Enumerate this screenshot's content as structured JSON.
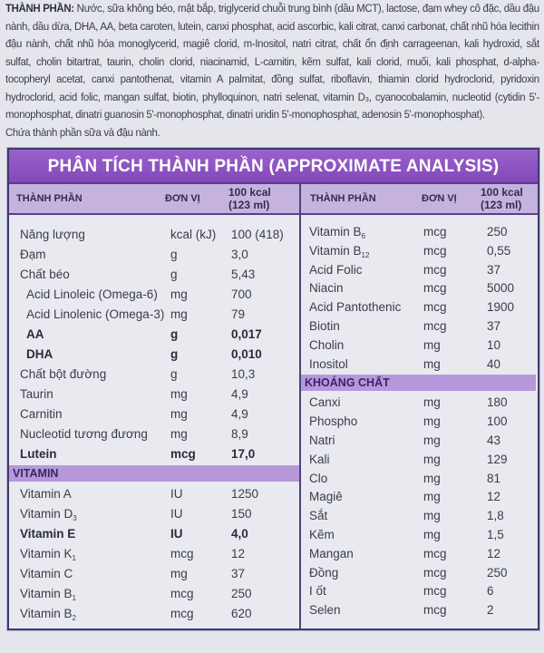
{
  "ingredients": {
    "label": "THÀNH PHẦN:",
    "text": "Nước, sữa không béo, mật bắp, triglycerid chuỗi trung bình (dầu MCT), lactose, đạm whey cô đặc, dầu đậu nành, dầu dừa, DHA, AA, beta caroten, lutein, canxi phosphat, acid ascorbic, kali citrat, canxi carbonat, chất nhũ hóa lecithin đậu nành, chất nhũ hóa monoglycerid, magiê clorid, m-Inositol, natri citrat, chất ổn định carrageenan, kali hydroxid, sắt sulfat, cholin bitartrat, taurin, cholin clorid, niacinamid, L-carnitin, kẽm sulfat, kali clorid, muối, kali phosphat, d-alpha-tocopheryl acetat, canxi pantothenat, vitamin A palmitat, đồng sulfat, riboflavin, thiamin clorid hydroclorid, pyridoxin hydroclorid, acid folic, mangan sulfat, biotin, phylloquinon, natri selenat, vitamin D₃, cyanocobalamin, nucleotid (cytidin 5'-monophosphat, dinatri guanosin 5'-monophosphat, dinatri uridin 5'-monophosphat, adenosin 5'-monophosphat).",
    "allergen": "Chứa thành phần sữa và đậu nành."
  },
  "table": {
    "title": "PHÂN TÍCH THÀNH PHẦN (APPROXIMATE ANALYSIS)",
    "headers": {
      "name": "THÀNH PHẦN",
      "unit": "ĐƠN VỊ",
      "value1": "100 kcal",
      "value2": "(123 ml)"
    },
    "left": [
      {
        "name": "Năng lượng",
        "unit": "kcal (kJ)",
        "value": "100 (418)"
      },
      {
        "name": "Đạm",
        "unit": "g",
        "value": "3,0"
      },
      {
        "name": "Chất béo",
        "unit": "g",
        "value": "5,43"
      },
      {
        "name": "Acid Linoleic (Omega-6)",
        "unit": "mg",
        "value": "700",
        "indent": true
      },
      {
        "name": "Acid Linolenic (Omega-3)",
        "unit": "mg",
        "value": "79",
        "indent": true
      },
      {
        "name": "AA",
        "unit": "g",
        "value": "0,017",
        "indent": true,
        "bold": true
      },
      {
        "name": "DHA",
        "unit": "g",
        "value": "0,010",
        "indent": true,
        "bold": true
      },
      {
        "name": "Chất bột đường",
        "unit": "g",
        "value": "10,3"
      },
      {
        "name": "Taurin",
        "unit": "mg",
        "value": "4,9"
      },
      {
        "name": "Carnitin",
        "unit": "mg",
        "value": "4,9"
      },
      {
        "name": "Nucleotid tương đương",
        "unit": "mg",
        "value": "8,9"
      },
      {
        "name": "Lutein",
        "unit": "mcg",
        "value": "17,0",
        "bold": true
      }
    ],
    "vitamin_label": "VITAMIN",
    "vitamins_left": [
      {
        "name": "Vitamin A",
        "unit": "IU",
        "value": "1250"
      },
      {
        "name": "Vitamin D",
        "sub": "3",
        "unit": "IU",
        "value": "150"
      },
      {
        "name": "Vitamin E",
        "unit": "IU",
        "value": "4,0",
        "bold": true
      },
      {
        "name": "Vitamin K",
        "sub": "1",
        "unit": "mcg",
        "value": "12"
      },
      {
        "name": "Vitamin  C",
        "unit": "mg",
        "value": "37"
      },
      {
        "name": "Vitamin B",
        "sub": "1",
        "unit": "mcg",
        "value": "250"
      },
      {
        "name": "Vitamin B",
        "sub": "2",
        "unit": "mcg",
        "value": "620"
      }
    ],
    "vitamins_right": [
      {
        "name": "Vitamin B",
        "sub": "6",
        "unit": "mcg",
        "value": "250"
      },
      {
        "name": "Vitamin B",
        "sub": "12",
        "unit": "mcg",
        "value": "0,55"
      },
      {
        "name": "Acid Folic",
        "unit": "mcg",
        "value": "37"
      },
      {
        "name": "Niacin",
        "unit": "mcg",
        "value": "5000"
      },
      {
        "name": "Acid Pantothenic",
        "unit": "mcg",
        "value": "1900"
      },
      {
        "name": "Biotin",
        "unit": "mcg",
        "value": "37"
      },
      {
        "name": "Cholin",
        "unit": "mg",
        "value": "10"
      },
      {
        "name": "Inositol",
        "unit": "mg",
        "value": "40"
      }
    ],
    "mineral_label": "KHOÁNG CHẤT",
    "minerals": [
      {
        "name": "Canxi",
        "unit": "mg",
        "value": "180"
      },
      {
        "name": "Phospho",
        "unit": "mg",
        "value": "100"
      },
      {
        "name": "Natri",
        "unit": "mg",
        "value": "43"
      },
      {
        "name": "Kali",
        "unit": "mg",
        "value": "129"
      },
      {
        "name": "Clo",
        "unit": "mg",
        "value": "81"
      },
      {
        "name": "Magiê",
        "unit": "mg",
        "value": "12"
      },
      {
        "name": "Sắt",
        "unit": "mg",
        "value": "1,8"
      },
      {
        "name": "Kẽm",
        "unit": "mg",
        "value": "1,5"
      },
      {
        "name": "Mangan",
        "unit": "mcg",
        "value": "12"
      },
      {
        "name": "Đồng",
        "unit": "mcg",
        "value": "250"
      },
      {
        "name": "I ốt",
        "unit": "mcg",
        "value": "6"
      },
      {
        "name": "Selen",
        "unit": "mcg",
        "value": "2"
      }
    ],
    "colors": {
      "title_bar": "#8a4fc0",
      "header_row": "#c6b2df",
      "section_bar": "#b698da",
      "border": "#3e3b6c"
    }
  }
}
